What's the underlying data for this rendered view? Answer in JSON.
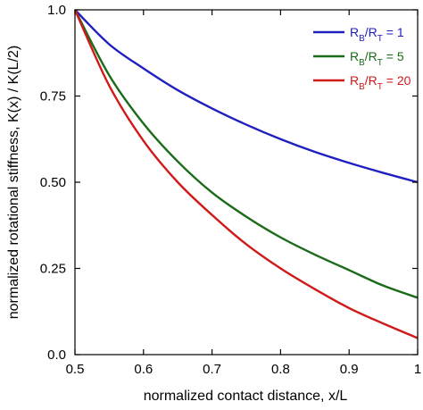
{
  "chart_data": {
    "type": "line",
    "title": "",
    "xlabel": "normalized contact distance, x/L",
    "ylabel": "normalized rotational stiffness, K(x) / K(L/2)",
    "xlim": [
      0.5,
      1.0
    ],
    "ylim": [
      0.0,
      1.0
    ],
    "xticks": [
      "0.5",
      "0.6",
      "0.7",
      "0.8",
      "0.9",
      "1"
    ],
    "yticks": [
      "0.0",
      "0.25",
      "0.50",
      "0.75",
      "1.0"
    ],
    "grid": false,
    "legend_position": "top-right",
    "series": [
      {
        "legend": {
          "r1": "R",
          "s1": "B",
          "r2": "/R",
          "s2": "T",
          "tail": " = 1"
        },
        "color": "#2020c0",
        "x": [
          0.5,
          0.55,
          0.6,
          0.65,
          0.7,
          0.75,
          0.8,
          0.85,
          0.9,
          0.95,
          1.0
        ],
        "y": [
          1.0,
          0.9,
          0.83,
          0.767,
          0.714,
          0.667,
          0.625,
          0.588,
          0.556,
          0.527,
          0.5
        ]
      },
      {
        "legend": {
          "r1": "R",
          "s1": "B",
          "r2": "/R",
          "s2": "T",
          "tail": " = 5"
        },
        "color": "#1a6b1a",
        "x": [
          0.5,
          0.55,
          0.6,
          0.65,
          0.7,
          0.75,
          0.8,
          0.85,
          0.9,
          0.95,
          1.0
        ],
        "y": [
          1.0,
          0.81,
          0.67,
          0.56,
          0.47,
          0.4,
          0.34,
          0.29,
          0.245,
          0.2,
          0.165
        ]
      },
      {
        "legend": {
          "r1": "R",
          "s1": "B",
          "r2": "/R",
          "s2": "T",
          "tail": " = 20"
        },
        "color": "#d01a1a",
        "x": [
          0.5,
          0.55,
          0.6,
          0.65,
          0.7,
          0.75,
          0.8,
          0.85,
          0.9,
          0.95,
          1.0
        ],
        "y": [
          1.0,
          0.78,
          0.62,
          0.5,
          0.405,
          0.32,
          0.25,
          0.19,
          0.135,
          0.09,
          0.048
        ]
      }
    ]
  }
}
